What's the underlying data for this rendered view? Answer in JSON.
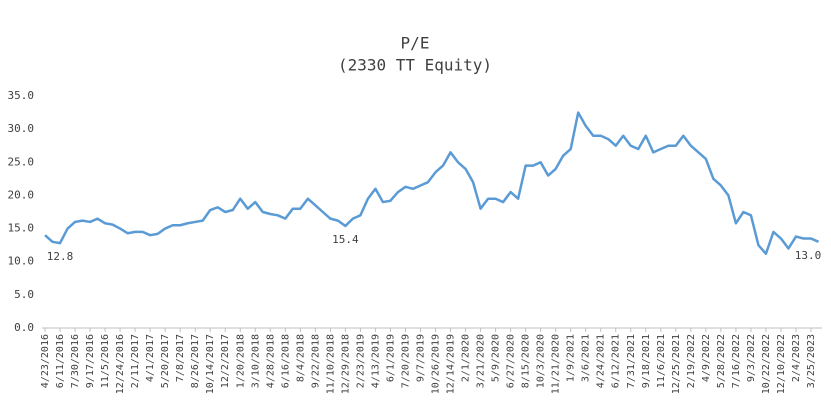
{
  "chart_data": {
    "type": "line",
    "title": "P/E",
    "subtitle": "(2330 TT Equity)",
    "categories": [
      "4/23/2016",
      null,
      "6/11/2016",
      null,
      "7/30/2016",
      null,
      "9/17/2016",
      null,
      "11/5/2016",
      null,
      "12/24/2016",
      null,
      "2/11/2017",
      null,
      "4/1/2017",
      null,
      "5/20/2017",
      null,
      "7/8/2017",
      null,
      "8/26/2017",
      null,
      "10/14/2017",
      null,
      "12/2/2017",
      null,
      "1/20/2018",
      null,
      "3/10/2018",
      null,
      "4/28/2018",
      null,
      "6/16/2018",
      null,
      "8/4/2018",
      null,
      "9/22/2018",
      null,
      "11/10/2018",
      null,
      "12/29/2018",
      null,
      "2/23/2019",
      null,
      "4/13/2019",
      null,
      "6/1/2019",
      null,
      "7/20/2019",
      null,
      "9/7/2019",
      null,
      "10/26/2019",
      null,
      "12/14/2019",
      null,
      "2/1/2020",
      null,
      "3/21/2020",
      null,
      "5/9/2020",
      null,
      "6/27/2020",
      null,
      "8/15/2020",
      null,
      "10/3/2020",
      null,
      "11/21/2020",
      null,
      "1/9/2021",
      null,
      "3/6/2021",
      null,
      "4/24/2021",
      null,
      "6/12/2021",
      null,
      "7/31/2021",
      null,
      "9/18/2021",
      null,
      "11/6/2021",
      null,
      "12/25/2021",
      null,
      "2/19/2022",
      null,
      "4/9/2022",
      null,
      "5/28/2022",
      null,
      "7/16/2022",
      null,
      "9/3/2022",
      null,
      "10/22/2022",
      null,
      "12/10/2022",
      null,
      "2/4/2023",
      null,
      "3/25/2023",
      null
    ],
    "series": [
      {
        "name": "P/E",
        "color": "#5b9bd5",
        "values": [
          14.0,
          13.0,
          12.8,
          15.0,
          16.0,
          16.2,
          16.0,
          16.5,
          15.8,
          15.6,
          15.0,
          14.3,
          14.5,
          14.5,
          14.0,
          14.2,
          15.0,
          15.5,
          15.5,
          15.8,
          16.0,
          16.2,
          17.8,
          18.2,
          17.5,
          17.8,
          19.5,
          18.0,
          19.0,
          17.5,
          17.2,
          17.0,
          16.5,
          18.0,
          18.0,
          19.5,
          18.5,
          17.5,
          16.5,
          16.2,
          15.4,
          16.5,
          17.0,
          19.5,
          21.0,
          19.0,
          19.2,
          20.5,
          21.3,
          21.0,
          21.5,
          22.0,
          23.5,
          24.5,
          26.5,
          25.0,
          24.0,
          22.0,
          18.0,
          19.5,
          19.5,
          19.0,
          20.5,
          19.5,
          24.5,
          24.5,
          25.0,
          23.0,
          24.0,
          26.0,
          27.0,
          32.5,
          30.5,
          29.0,
          29.0,
          28.5,
          27.5,
          29.0,
          27.5,
          27.0,
          29.0,
          26.5,
          27.0,
          27.5,
          27.5,
          29.0,
          27.5,
          26.5,
          25.5,
          22.5,
          21.5,
          20.0,
          15.8,
          17.5,
          17.0,
          12.5,
          11.2,
          14.5,
          13.5,
          12.0,
          13.8,
          13.5,
          13.5,
          13.0
        ],
        "value_labels": [
          null,
          null,
          "12.8",
          null,
          null,
          null,
          null,
          null,
          null,
          null,
          null,
          null,
          null,
          null,
          null,
          null,
          null,
          null,
          null,
          null,
          null,
          null,
          null,
          null,
          null,
          null,
          null,
          null,
          null,
          null,
          null,
          null,
          null,
          null,
          null,
          null,
          null,
          null,
          null,
          null,
          "15.4",
          null,
          null,
          null,
          null,
          null,
          null,
          null,
          null,
          null,
          null,
          null,
          null,
          null,
          null,
          null,
          null,
          null,
          null,
          null,
          null,
          null,
          null,
          null,
          null,
          null,
          null,
          null,
          null,
          null,
          null,
          null,
          null,
          null,
          null,
          null,
          null,
          null,
          null,
          null,
          null,
          null,
          null,
          null,
          null,
          null,
          null,
          null,
          null,
          null,
          null,
          null,
          null,
          null,
          null,
          null,
          null,
          null,
          null,
          null,
          null,
          null,
          null,
          "13.0"
        ]
      }
    ],
    "ylim": [
      0,
      35
    ],
    "yticks": [
      {
        "value": 0,
        "label": "0.0"
      },
      {
        "value": 5,
        "label": "5.0"
      },
      {
        "value": 10,
        "label": "10.0"
      },
      {
        "value": 15,
        "label": "15.0"
      },
      {
        "value": 20,
        "label": "20.0"
      },
      {
        "value": 25,
        "label": "25.0"
      },
      {
        "value": 30,
        "label": "30.0"
      },
      {
        "value": 35,
        "label": "35.0"
      }
    ],
    "grid": false
  }
}
